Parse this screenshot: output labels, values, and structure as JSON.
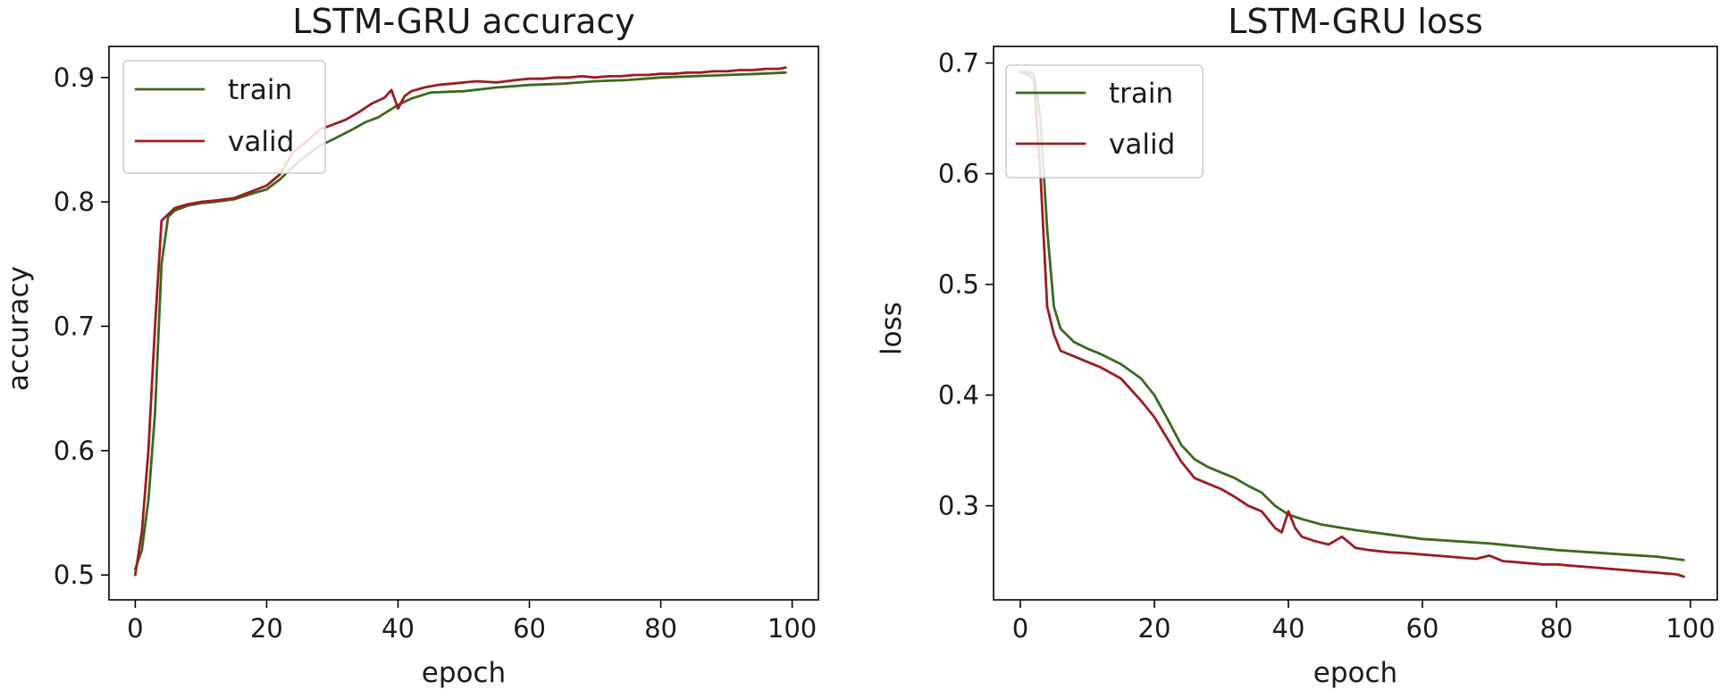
{
  "chart_data": [
    {
      "type": "line",
      "title": "LSTM-GRU accuracy",
      "xlabel": "epoch",
      "ylabel": "accuracy",
      "xlim": [
        -4,
        104
      ],
      "ylim": [
        0.48,
        0.925
      ],
      "xticks": [
        0,
        20,
        40,
        60,
        80,
        100
      ],
      "yticks": [
        0.5,
        0.6,
        0.7,
        0.8,
        0.9
      ],
      "ytick_labels": [
        "0.5",
        "0.6",
        "0.7",
        "0.8",
        "0.9"
      ],
      "grid": false,
      "legend_position": "top-left",
      "colors": {
        "train": "#3a6a1e",
        "valid": "#9c1c22"
      },
      "series": [
        {
          "name": "train",
          "x": [
            0,
            1,
            2,
            3,
            4,
            5,
            6,
            8,
            10,
            12,
            15,
            18,
            20,
            22,
            25,
            28,
            30,
            33,
            35,
            37,
            40,
            42,
            45,
            50,
            55,
            60,
            65,
            70,
            75,
            80,
            85,
            90,
            95,
            99
          ],
          "values": [
            0.505,
            0.52,
            0.56,
            0.63,
            0.75,
            0.788,
            0.793,
            0.797,
            0.799,
            0.8,
            0.802,
            0.807,
            0.81,
            0.818,
            0.833,
            0.845,
            0.85,
            0.858,
            0.864,
            0.868,
            0.878,
            0.883,
            0.888,
            0.889,
            0.892,
            0.894,
            0.895,
            0.897,
            0.898,
            0.9,
            0.901,
            0.902,
            0.903,
            0.904
          ]
        },
        {
          "name": "valid",
          "x": [
            0,
            1,
            2,
            3,
            4,
            5,
            6,
            8,
            10,
            12,
            15,
            18,
            20,
            22,
            24,
            26,
            28,
            30,
            32,
            34,
            36,
            38,
            39,
            40,
            41,
            42,
            44,
            46,
            48,
            50,
            52,
            55,
            58,
            60,
            62,
            64,
            66,
            68,
            70,
            72,
            74,
            76,
            78,
            80,
            82,
            84,
            86,
            88,
            90,
            92,
            94,
            96,
            98,
            99
          ],
          "values": [
            0.5,
            0.535,
            0.6,
            0.7,
            0.785,
            0.79,
            0.795,
            0.798,
            0.8,
            0.801,
            0.803,
            0.809,
            0.813,
            0.822,
            0.84,
            0.848,
            0.858,
            0.862,
            0.866,
            0.872,
            0.879,
            0.884,
            0.89,
            0.875,
            0.885,
            0.889,
            0.892,
            0.894,
            0.895,
            0.896,
            0.897,
            0.896,
            0.898,
            0.899,
            0.899,
            0.9,
            0.9,
            0.901,
            0.9,
            0.901,
            0.901,
            0.902,
            0.902,
            0.903,
            0.903,
            0.904,
            0.904,
            0.905,
            0.905,
            0.906,
            0.906,
            0.907,
            0.907,
            0.908
          ]
        }
      ]
    },
    {
      "type": "line",
      "title": "LSTM-GRU loss",
      "xlabel": "epoch",
      "ylabel": "loss",
      "xlim": [
        -4,
        104
      ],
      "ylim": [
        0.215,
        0.715
      ],
      "xticks": [
        0,
        20,
        40,
        60,
        80,
        100
      ],
      "yticks": [
        0.3,
        0.4,
        0.5,
        0.6,
        0.7
      ],
      "ytick_labels": [
        "0.3",
        "0.4",
        "0.5",
        "0.6",
        "0.7"
      ],
      "grid": false,
      "legend_position": "top-left",
      "colors": {
        "train": "#3a6a1e",
        "valid": "#9c1c22"
      },
      "series": [
        {
          "name": "train",
          "x": [
            0,
            1,
            2,
            3,
            4,
            5,
            6,
            8,
            10,
            12,
            15,
            18,
            20,
            22,
            24,
            26,
            28,
            30,
            32,
            34,
            36,
            38,
            40,
            42,
            45,
            50,
            55,
            60,
            65,
            70,
            75,
            80,
            85,
            90,
            95,
            99
          ],
          "values": [
            0.692,
            0.692,
            0.69,
            0.65,
            0.55,
            0.48,
            0.46,
            0.448,
            0.442,
            0.437,
            0.428,
            0.415,
            0.4,
            0.378,
            0.355,
            0.342,
            0.335,
            0.33,
            0.325,
            0.318,
            0.312,
            0.3,
            0.292,
            0.288,
            0.283,
            0.278,
            0.274,
            0.27,
            0.268,
            0.266,
            0.263,
            0.26,
            0.258,
            0.256,
            0.254,
            0.251
          ]
        },
        {
          "name": "valid",
          "x": [
            0,
            1,
            2,
            3,
            4,
            5,
            6,
            8,
            10,
            12,
            15,
            18,
            20,
            22,
            24,
            26,
            28,
            30,
            32,
            34,
            36,
            38,
            39,
            40,
            41,
            42,
            44,
            46,
            48,
            50,
            52,
            55,
            58,
            60,
            62,
            64,
            66,
            68,
            70,
            72,
            74,
            76,
            78,
            80,
            82,
            84,
            86,
            88,
            90,
            92,
            94,
            96,
            98,
            99
          ],
          "values": [
            0.692,
            0.69,
            0.685,
            0.6,
            0.48,
            0.455,
            0.44,
            0.435,
            0.43,
            0.425,
            0.415,
            0.395,
            0.38,
            0.36,
            0.34,
            0.325,
            0.32,
            0.315,
            0.308,
            0.3,
            0.295,
            0.28,
            0.276,
            0.295,
            0.28,
            0.272,
            0.268,
            0.265,
            0.272,
            0.262,
            0.26,
            0.258,
            0.257,
            0.256,
            0.255,
            0.254,
            0.253,
            0.252,
            0.255,
            0.25,
            0.249,
            0.248,
            0.247,
            0.247,
            0.246,
            0.245,
            0.244,
            0.243,
            0.242,
            0.241,
            0.24,
            0.239,
            0.238,
            0.236
          ]
        }
      ]
    }
  ]
}
